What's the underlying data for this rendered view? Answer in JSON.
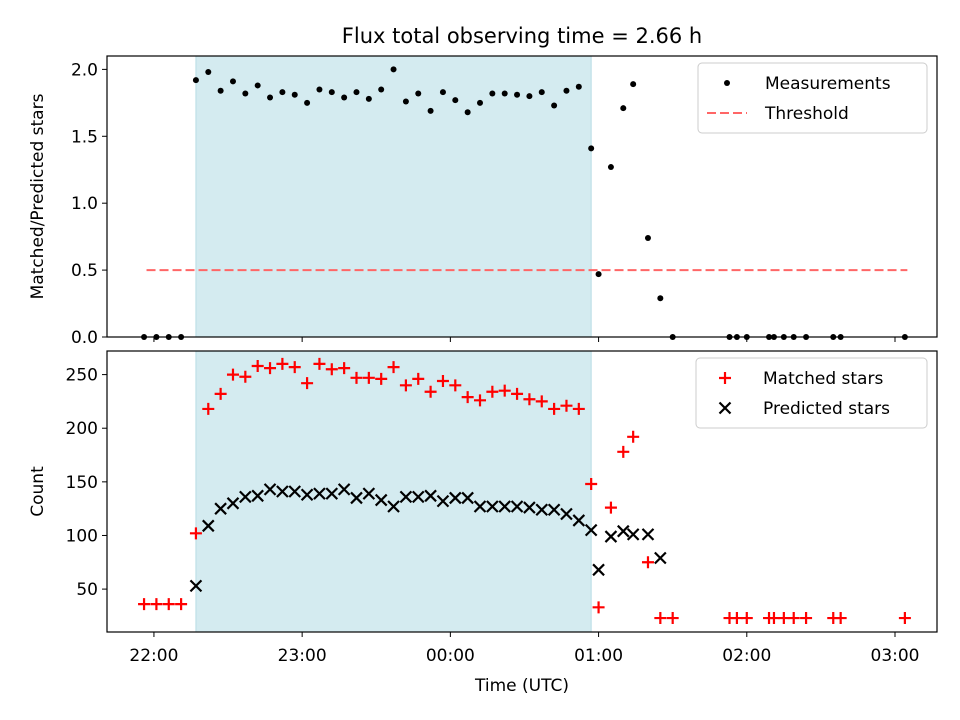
{
  "chart_data": [
    {
      "type": "scatter",
      "title": "Flux total observing time = 2.66 h",
      "xlabel": "",
      "ylabel": "Matched/Predicted stars",
      "xlim": [
        "2024-01-01T21:41:00",
        "2024-01-02T03:17:00"
      ],
      "ylim": [
        0,
        2.1
      ],
      "yticks": [
        0.0,
        0.5,
        1.0,
        1.5,
        2.0
      ],
      "ytick_labels": [
        "0.0",
        "0.5",
        "1.0",
        "1.5",
        "2.0"
      ],
      "shaded_interval": [
        "2024-01-01T22:17:00",
        "2024-01-02T00:57:00"
      ],
      "legend_position": "upper right",
      "grid": false,
      "series": [
        {
          "name": "Measurements",
          "marker": "dot",
          "color": "#000000",
          "points": [
            [
              "2024-01-01T21:56:00",
              0.0
            ],
            [
              "2024-01-01T22:01:00",
              0.0
            ],
            [
              "2024-01-01T22:06:00",
              0.0
            ],
            [
              "2024-01-01T22:11:00",
              0.0
            ],
            [
              "2024-01-01T22:17:00",
              1.92
            ],
            [
              "2024-01-01T22:22:00",
              1.98
            ],
            [
              "2024-01-01T22:27:00",
              1.84
            ],
            [
              "2024-01-01T22:32:00",
              1.91
            ],
            [
              "2024-01-01T22:37:00",
              1.82
            ],
            [
              "2024-01-01T22:42:00",
              1.88
            ],
            [
              "2024-01-01T22:47:00",
              1.79
            ],
            [
              "2024-01-01T22:52:00",
              1.83
            ],
            [
              "2024-01-01T22:57:00",
              1.81
            ],
            [
              "2024-01-01T23:02:00",
              1.75
            ],
            [
              "2024-01-01T23:07:00",
              1.85
            ],
            [
              "2024-01-01T23:12:00",
              1.83
            ],
            [
              "2024-01-01T23:17:00",
              1.79
            ],
            [
              "2024-01-01T23:22:00",
              1.83
            ],
            [
              "2024-01-01T23:27:00",
              1.78
            ],
            [
              "2024-01-01T23:32:00",
              1.85
            ],
            [
              "2024-01-01T23:37:00",
              2.0
            ],
            [
              "2024-01-01T23:42:00",
              1.76
            ],
            [
              "2024-01-01T23:47:00",
              1.82
            ],
            [
              "2024-01-01T23:52:00",
              1.69
            ],
            [
              "2024-01-01T23:57:00",
              1.83
            ],
            [
              "2024-01-02T00:02:00",
              1.77
            ],
            [
              "2024-01-02T00:07:00",
              1.68
            ],
            [
              "2024-01-02T00:12:00",
              1.75
            ],
            [
              "2024-01-02T00:17:00",
              1.82
            ],
            [
              "2024-01-02T00:22:00",
              1.82
            ],
            [
              "2024-01-02T00:27:00",
              1.81
            ],
            [
              "2024-01-02T00:32:00",
              1.8
            ],
            [
              "2024-01-02T00:37:00",
              1.83
            ],
            [
              "2024-01-02T00:42:00",
              1.73
            ],
            [
              "2024-01-02T00:47:00",
              1.84
            ],
            [
              "2024-01-02T00:52:00",
              1.87
            ],
            [
              "2024-01-02T00:57:00",
              1.41
            ],
            [
              "2024-01-02T01:00:00",
              0.47
            ],
            [
              "2024-01-02T01:05:00",
              1.27
            ],
            [
              "2024-01-02T01:10:00",
              1.71
            ],
            [
              "2024-01-02T01:14:00",
              1.89
            ],
            [
              "2024-01-02T01:20:00",
              0.74
            ],
            [
              "2024-01-02T01:25:00",
              0.29
            ],
            [
              "2024-01-02T01:30:00",
              0.0
            ],
            [
              "2024-01-02T01:53:00",
              0.0
            ],
            [
              "2024-01-02T01:56:00",
              0.0
            ],
            [
              "2024-01-02T02:00:00",
              0.0
            ],
            [
              "2024-01-02T02:09:00",
              0.0
            ],
            [
              "2024-01-02T02:11:00",
              0.0
            ],
            [
              "2024-01-02T02:15:00",
              0.0
            ],
            [
              "2024-01-02T02:19:00",
              0.0
            ],
            [
              "2024-01-02T02:24:00",
              0.0
            ],
            [
              "2024-01-02T02:35:00",
              0.0
            ],
            [
              "2024-01-02T02:38:00",
              0.0
            ],
            [
              "2024-01-02T03:04:00",
              0.0
            ]
          ]
        },
        {
          "name": "Threshold",
          "kind": "dashed-line",
          "color": "#ff6666",
          "points": [
            [
              "2024-01-01T21:57:00",
              0.5
            ],
            [
              "2024-01-02T03:05:00",
              0.5
            ]
          ]
        }
      ]
    },
    {
      "type": "scatter",
      "title": "",
      "xlabel": "Time (UTC)",
      "ylabel": "Count",
      "xlim": [
        "2024-01-01T21:41:00",
        "2024-01-02T03:17:00"
      ],
      "ylim": [
        10,
        272
      ],
      "yticks": [
        50,
        100,
        150,
        200,
        250
      ],
      "ytick_labels": [
        "50",
        "100",
        "150",
        "200",
        "250"
      ],
      "xticks": [
        "2024-01-01T22:00:00",
        "2024-01-01T23:00:00",
        "2024-01-02T00:00:00",
        "2024-01-02T01:00:00",
        "2024-01-02T02:00:00",
        "2024-01-02T03:00:00"
      ],
      "xtick_labels": [
        "22:00",
        "23:00",
        "00:00",
        "01:00",
        "02:00",
        "03:00"
      ],
      "shaded_interval": [
        "2024-01-01T22:17:00",
        "2024-01-02T00:57:00"
      ],
      "legend_position": "upper right",
      "grid": false,
      "series": [
        {
          "name": "Matched stars",
          "marker": "plus",
          "color": "#ff0000",
          "points": [
            [
              "2024-01-01T21:56:00",
              36
            ],
            [
              "2024-01-01T22:01:00",
              36
            ],
            [
              "2024-01-01T22:06:00",
              36
            ],
            [
              "2024-01-01T22:11:00",
              36
            ],
            [
              "2024-01-01T22:17:00",
              102
            ],
            [
              "2024-01-01T22:22:00",
              218
            ],
            [
              "2024-01-01T22:27:00",
              232
            ],
            [
              "2024-01-01T22:32:00",
              250
            ],
            [
              "2024-01-01T22:37:00",
              248
            ],
            [
              "2024-01-01T22:42:00",
              258
            ],
            [
              "2024-01-01T22:47:00",
              256
            ],
            [
              "2024-01-01T22:52:00",
              260
            ],
            [
              "2024-01-01T22:57:00",
              257
            ],
            [
              "2024-01-01T23:02:00",
              242
            ],
            [
              "2024-01-01T23:07:00",
              260
            ],
            [
              "2024-01-01T23:12:00",
              255
            ],
            [
              "2024-01-01T23:17:00",
              256
            ],
            [
              "2024-01-01T23:22:00",
              247
            ],
            [
              "2024-01-01T23:27:00",
              247
            ],
            [
              "2024-01-01T23:32:00",
              246
            ],
            [
              "2024-01-01T23:37:00",
              257
            ],
            [
              "2024-01-01T23:42:00",
              240
            ],
            [
              "2024-01-01T23:47:00",
              246
            ],
            [
              "2024-01-01T23:52:00",
              234
            ],
            [
              "2024-01-01T23:57:00",
              244
            ],
            [
              "2024-01-02T00:02:00",
              240
            ],
            [
              "2024-01-02T00:07:00",
              229
            ],
            [
              "2024-01-02T00:12:00",
              226
            ],
            [
              "2024-01-02T00:17:00",
              234
            ],
            [
              "2024-01-02T00:22:00",
              235
            ],
            [
              "2024-01-02T00:27:00",
              232
            ],
            [
              "2024-01-02T00:32:00",
              227
            ],
            [
              "2024-01-02T00:37:00",
              225
            ],
            [
              "2024-01-02T00:42:00",
              218
            ],
            [
              "2024-01-02T00:47:00",
              221
            ],
            [
              "2024-01-02T00:52:00",
              218
            ],
            [
              "2024-01-02T00:57:00",
              148
            ],
            [
              "2024-01-02T01:00:00",
              33
            ],
            [
              "2024-01-02T01:05:00",
              126
            ],
            [
              "2024-01-02T01:10:00",
              178
            ],
            [
              "2024-01-02T01:14:00",
              192
            ],
            [
              "2024-01-02T01:20:00",
              75
            ],
            [
              "2024-01-02T01:25:00",
              23
            ],
            [
              "2024-01-02T01:30:00",
              23
            ],
            [
              "2024-01-02T01:53:00",
              23
            ],
            [
              "2024-01-02T01:56:00",
              23
            ],
            [
              "2024-01-02T02:00:00",
              23
            ],
            [
              "2024-01-02T02:09:00",
              23
            ],
            [
              "2024-01-02T02:11:00",
              23
            ],
            [
              "2024-01-02T02:15:00",
              23
            ],
            [
              "2024-01-02T02:19:00",
              23
            ],
            [
              "2024-01-02T02:24:00",
              23
            ],
            [
              "2024-01-02T02:35:00",
              23
            ],
            [
              "2024-01-02T02:38:00",
              23
            ],
            [
              "2024-01-02T03:04:00",
              23
            ]
          ]
        },
        {
          "name": "Predicted stars",
          "marker": "x",
          "color": "#000000",
          "points": [
            [
              "2024-01-01T22:17:00",
              53
            ],
            [
              "2024-01-01T22:22:00",
              109
            ],
            [
              "2024-01-01T22:27:00",
              125
            ],
            [
              "2024-01-01T22:32:00",
              130
            ],
            [
              "2024-01-01T22:37:00",
              136
            ],
            [
              "2024-01-01T22:42:00",
              137
            ],
            [
              "2024-01-01T22:47:00",
              143
            ],
            [
              "2024-01-01T22:52:00",
              141
            ],
            [
              "2024-01-01T22:57:00",
              141
            ],
            [
              "2024-01-01T23:02:00",
              138
            ],
            [
              "2024-01-01T23:07:00",
              139
            ],
            [
              "2024-01-01T23:12:00",
              139
            ],
            [
              "2024-01-01T23:17:00",
              143
            ],
            [
              "2024-01-01T23:22:00",
              135
            ],
            [
              "2024-01-01T23:27:00",
              139
            ],
            [
              "2024-01-01T23:32:00",
              133
            ],
            [
              "2024-01-01T23:37:00",
              127
            ],
            [
              "2024-01-01T23:42:00",
              136
            ],
            [
              "2024-01-01T23:47:00",
              136
            ],
            [
              "2024-01-01T23:52:00",
              137
            ],
            [
              "2024-01-01T23:57:00",
              132
            ],
            [
              "2024-01-02T00:02:00",
              135
            ],
            [
              "2024-01-02T00:07:00",
              135
            ],
            [
              "2024-01-02T00:12:00",
              127
            ],
            [
              "2024-01-02T00:17:00",
              127
            ],
            [
              "2024-01-02T00:22:00",
              127
            ],
            [
              "2024-01-02T00:27:00",
              127
            ],
            [
              "2024-01-02T00:32:00",
              126
            ],
            [
              "2024-01-02T00:37:00",
              124
            ],
            [
              "2024-01-02T00:42:00",
              124
            ],
            [
              "2024-01-02T00:47:00",
              120
            ],
            [
              "2024-01-02T00:52:00",
              114
            ],
            [
              "2024-01-02T00:57:00",
              105
            ],
            [
              "2024-01-02T01:00:00",
              68
            ],
            [
              "2024-01-02T01:05:00",
              99
            ],
            [
              "2024-01-02T01:10:00",
              104
            ],
            [
              "2024-01-02T01:14:00",
              101
            ],
            [
              "2024-01-02T01:20:00",
              101
            ],
            [
              "2024-01-02T01:25:00",
              79
            ]
          ]
        }
      ]
    }
  ],
  "colors": {
    "shaded_region": "#d4ebf0",
    "shaded_edge": "#b8dde5",
    "threshold": "#ff6666",
    "matched": "#ff0000",
    "predicted": "#000000"
  }
}
